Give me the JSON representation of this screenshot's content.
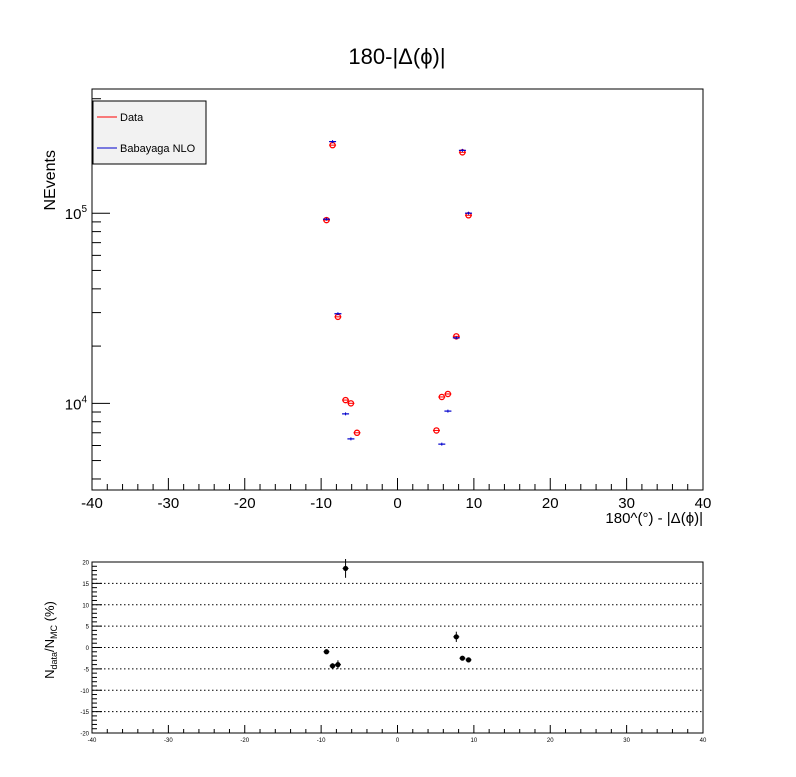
{
  "chart_data": [
    {
      "type": "scatter",
      "title": "180-|Δ(ϕ)|",
      "xlabel": "180^(°) - |Δ(ϕ)|",
      "ylabel": "NEvents",
      "xlim": [
        -40,
        40
      ],
      "ylim": [
        3500,
        450000
      ],
      "yscale": "log",
      "x_ticks": [
        "-40",
        "-30",
        "-20",
        "-10",
        "0",
        "10",
        "20",
        "30",
        "40"
      ],
      "y_ticks": [
        {
          "value": 10000,
          "base": "10",
          "exp": "4"
        },
        {
          "value": 100000,
          "base": "10",
          "exp": "5"
        }
      ],
      "grid": false,
      "legend_position": "top-left",
      "legend": [
        {
          "label": "Data",
          "color": "#ff0000"
        },
        {
          "label": "Babayaga NLO",
          "color": "#0000cc"
        }
      ],
      "series": [
        {
          "name": "Data",
          "color": "#ff0000",
          "marker": "open-circle",
          "x": [
            -9.3,
            -8.5,
            -7.8,
            -6.8,
            -6.1,
            -5.3,
            5.1,
            5.8,
            6.6,
            7.7,
            8.5,
            9.3
          ],
          "y": [
            92000,
            228000,
            28500,
            10400,
            10000,
            7000,
            7200,
            10800,
            11200,
            22500,
            209000,
            97500
          ]
        },
        {
          "name": "Babayaga NLO",
          "color": "#0000cc",
          "marker": "cross",
          "x": [
            -9.3,
            -8.5,
            -7.8,
            -6.8,
            -6.1,
            5.8,
            6.6,
            7.7,
            8.5,
            9.3
          ],
          "y": [
            93000,
            238000,
            29600,
            8800,
            6500,
            6100,
            9100,
            22100,
            214000,
            100000
          ]
        }
      ]
    },
    {
      "type": "scatter",
      "ylabel": "N_data/N_MC (%)",
      "ylabel_parts": {
        "base": "N",
        "sub1": "data",
        "sep": "/N",
        "sub2": "MC",
        "suffix": " (%)"
      },
      "xlim": [
        -40,
        40
      ],
      "ylim": [
        -20,
        20
      ],
      "x_ticks": [
        "-40",
        "-30",
        "-20",
        "-10",
        "0",
        "10",
        "20",
        "30",
        "40"
      ],
      "y_ticks": [
        "-20",
        "-15",
        "-10",
        "-5",
        "0",
        "5",
        "10",
        "15",
        "20"
      ],
      "grid": "horizontal-dotted",
      "series": [
        {
          "color": "#000000",
          "marker": "filled-circle",
          "x": [
            -9.3,
            -8.5,
            -7.8,
            -6.8,
            7.7,
            8.5,
            9.3
          ],
          "y": [
            -1.0,
            -4.3,
            -4.0,
            18.5,
            2.5,
            -2.5,
            -2.9
          ],
          "err": [
            0.5,
            0.6,
            1.0,
            2.2,
            1.2,
            0.5,
            0.5
          ]
        }
      ]
    }
  ]
}
